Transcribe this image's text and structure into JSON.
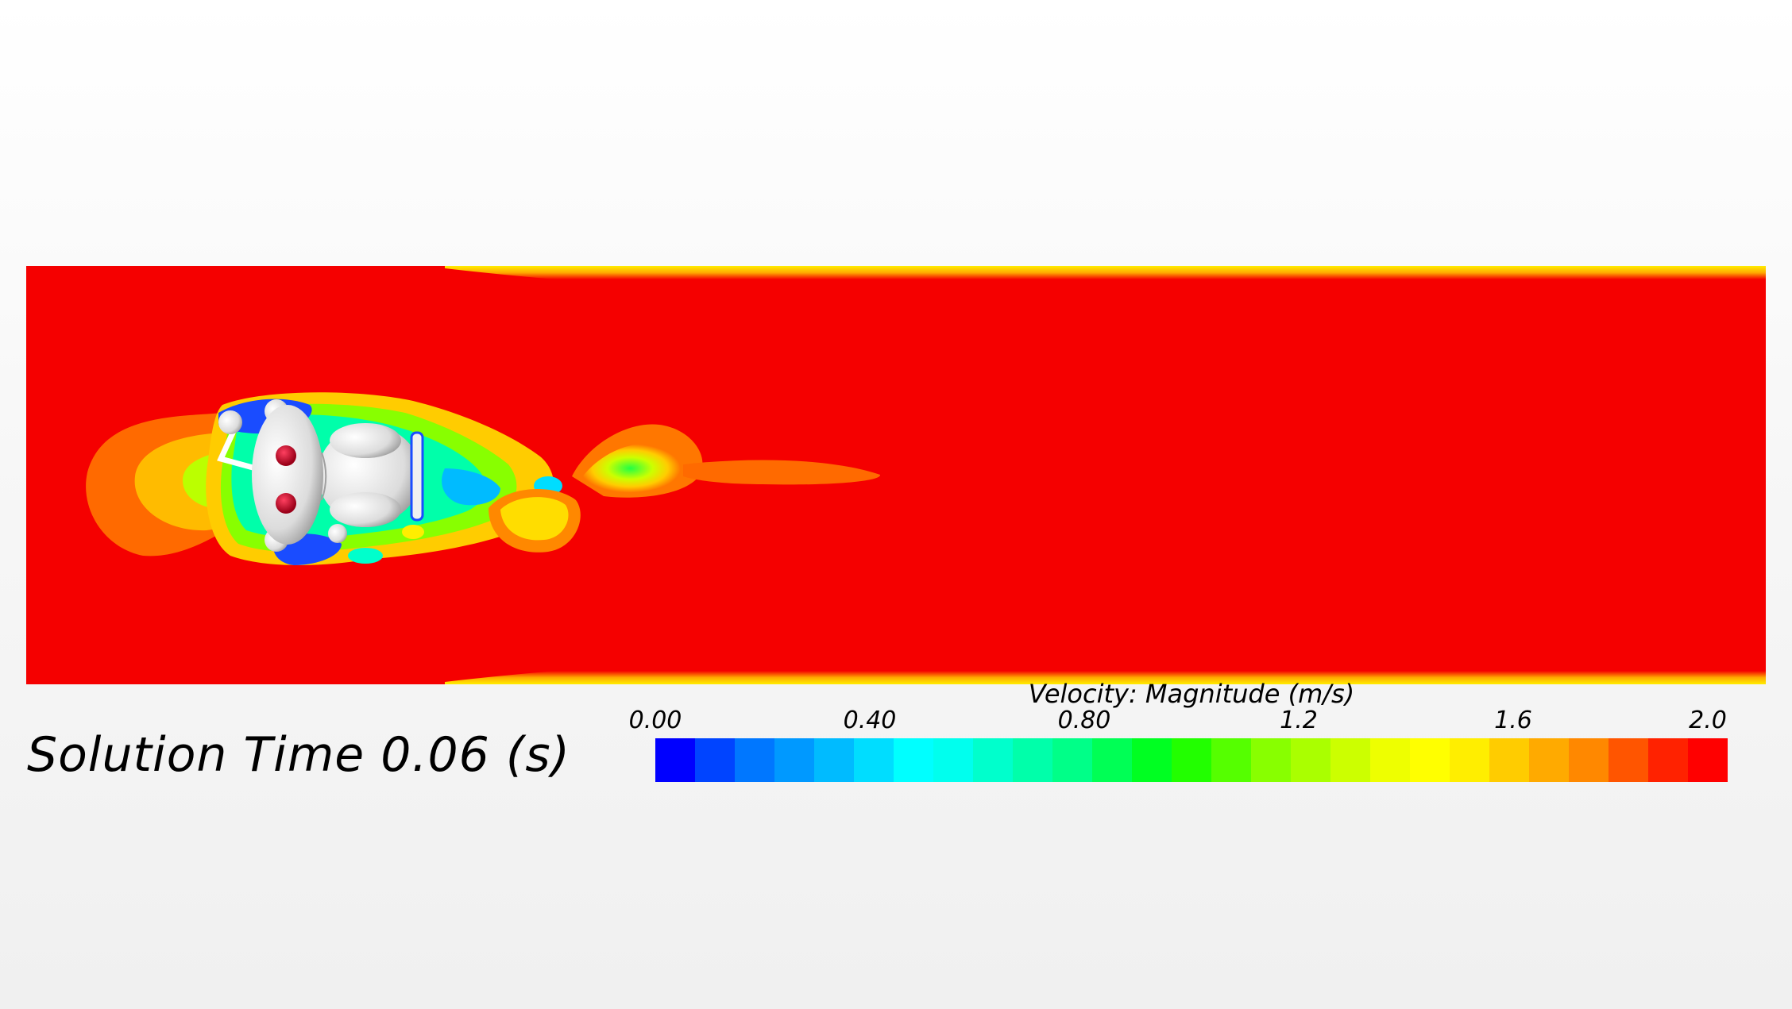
{
  "solution_time": {
    "label": "Solution Time 0.06 (s)"
  },
  "colorbar": {
    "title": "Velocity: Magnitude (m/s)",
    "min": 0.0,
    "max": 2.0,
    "ticks": [
      {
        "value": 0.0,
        "label": "0.00"
      },
      {
        "value": 0.4,
        "label": "0.40"
      },
      {
        "value": 0.8,
        "label": "0.80"
      },
      {
        "value": 1.2,
        "label": "1.2"
      },
      {
        "value": 1.6,
        "label": "1.6"
      },
      {
        "value": 2.0,
        "label": "2.0"
      }
    ],
    "colors": [
      "#0000ff",
      "#0044ff",
      "#0077ff",
      "#0099ff",
      "#00bbff",
      "#00ddff",
      "#00ffff",
      "#00ffee",
      "#00ffcc",
      "#00ffaa",
      "#00ff88",
      "#00ff55",
      "#00ff22",
      "#22ff00",
      "#55ff00",
      "#88ff00",
      "#aaff00",
      "#ccff00",
      "#eeff00",
      "#ffff00",
      "#ffee00",
      "#ffcc00",
      "#ffaa00",
      "#ff8800",
      "#ff5500",
      "#ff2200",
      "#ff0000"
    ]
  },
  "flow_field": {
    "background_color": "#f50000",
    "wall_edge_color": "#ffee00",
    "body_color": "#e8e8e8",
    "eye_color": "#c8102e"
  }
}
